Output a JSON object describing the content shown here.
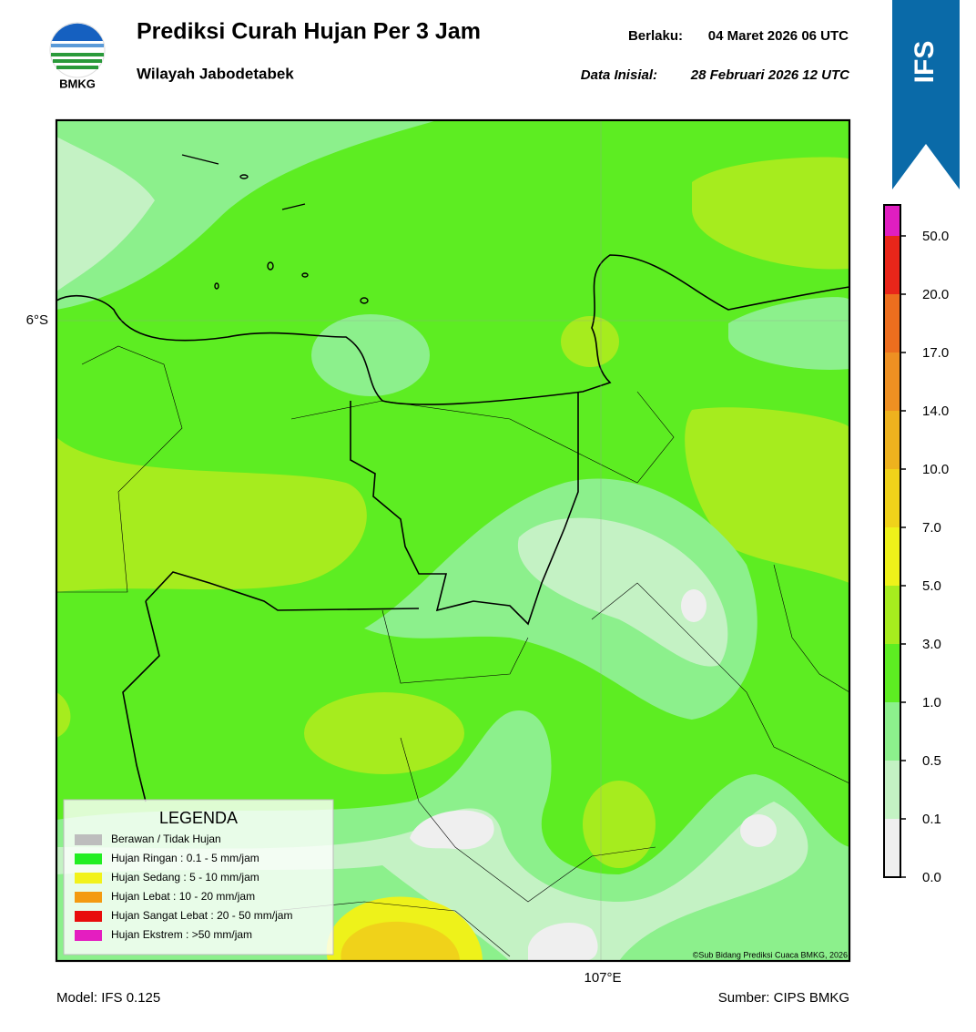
{
  "header": {
    "logo_text": "BMKG",
    "title": "Prediksi Curah Hujan Per 3 Jam",
    "subtitle": "Wilayah Jabodetabek",
    "valid_label": "Berlaku:",
    "valid_time": "04 Maret 2026 06 UTC",
    "init_label": "Data Inisial:",
    "init_time": "28 Februari 2026 12 UTC",
    "badge": "IFS"
  },
  "map": {
    "lat_label": "6°S",
    "lon_label": "107°E",
    "copyright": "©Sub Bidang Prediksi Cuaca BMKG, 2026"
  },
  "colorbar": {
    "ticks": [
      "0.0",
      "0.1",
      "0.5",
      "1.0",
      "3.0",
      "5.0",
      "7.0",
      "10.0",
      "14.0",
      "17.0",
      "20.0",
      "50.0"
    ],
    "colors": [
      "#efefef",
      "#c4f2c4",
      "#8cf08c",
      "#5ded22",
      "#a6ec1e",
      "#eef21a",
      "#f0d21a",
      "#eeb21e",
      "#ee9022",
      "#ec6e1e",
      "#e8261a",
      "#e01ec0"
    ]
  },
  "legend": {
    "title": "LEGENDA",
    "items": [
      {
        "label": "Berawan / Tidak Hujan",
        "color": "#bdbdbd"
      },
      {
        "label": "Hujan Ringan : 0.1 - 5 mm/jam",
        "color": "#22ee22"
      },
      {
        "label": "Hujan Sedang : 5 - 10 mm/jam",
        "color": "#f2f21a"
      },
      {
        "label": "Hujan Lebat : 10 - 20 mm/jam",
        "color": "#f49a10"
      },
      {
        "label": "Hujan Sangat Lebat : 20 - 50 mm/jam",
        "color": "#e80c0c"
      },
      {
        "label": "Hujan Ekstrem : >50 mm/jam",
        "color": "#e41ec0"
      }
    ]
  },
  "footer": {
    "model": "Model: IFS 0.125",
    "source": "Sumber: CIPS BMKG"
  }
}
